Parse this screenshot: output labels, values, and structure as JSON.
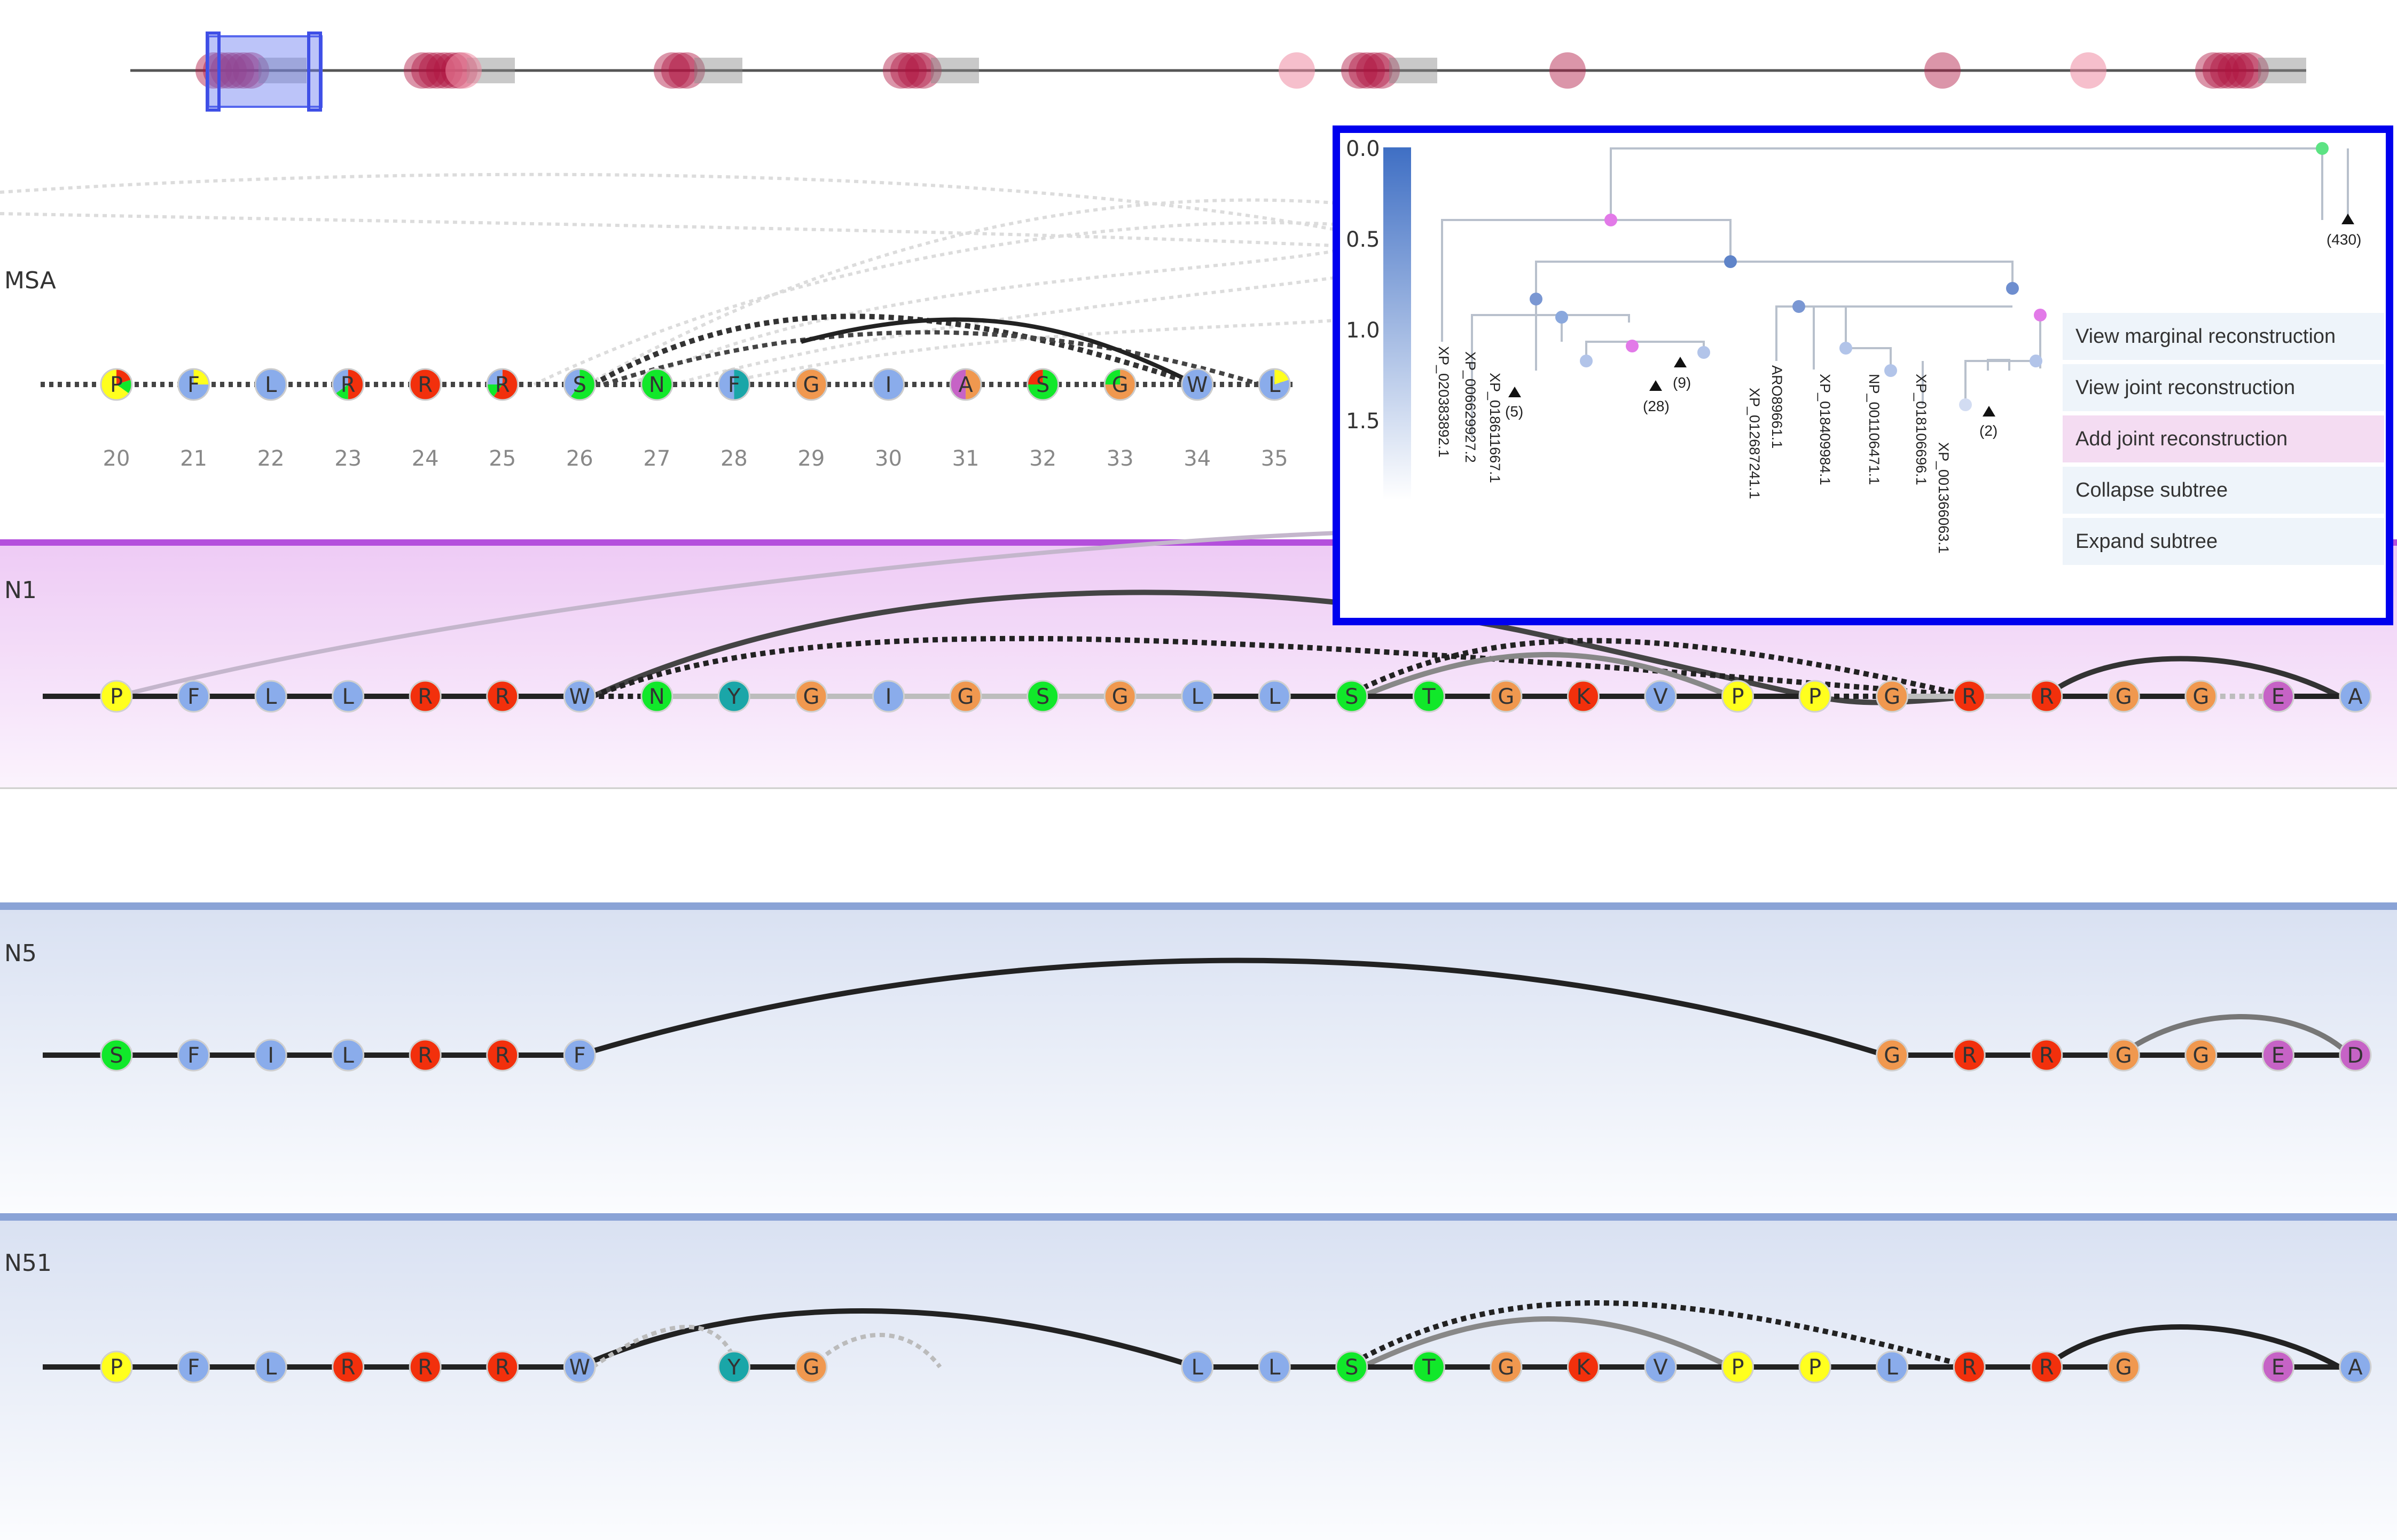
{
  "colors": {
    "yellow": "#ffff1e",
    "blue": "#8aaceb",
    "red": "#f2300c",
    "green": "#11e82a",
    "teal": "#1aa6a8",
    "orange": "#f0984f",
    "purple": "#c663c6",
    "n1_band": "#f1ccf5",
    "n1_border": "#b44fdc",
    "n5_band": "#dbe3f3",
    "n5_border": "#8aa3d6",
    "tree_border": "#0000ee",
    "brush": "#6a7cf2"
  },
  "overview": {
    "region_icon": "brush-window",
    "marks": [
      {
        "pos": 0.0,
        "hue": "dark",
        "w": 6
      },
      {
        "pos": 0.1,
        "hue": "dark",
        "w": 6
      },
      {
        "pos": 0.12,
        "hue": "light",
        "w": 1
      },
      {
        "pos": 0.22,
        "hue": "dark",
        "w": 3
      },
      {
        "pos": 0.33,
        "hue": "dark",
        "w": 4
      },
      {
        "pos": 0.52,
        "hue": "light",
        "w": 1
      },
      {
        "pos": 0.55,
        "hue": "dark",
        "w": 4
      },
      {
        "pos": 0.65,
        "hue": "dark",
        "w": 1
      },
      {
        "pos": 0.83,
        "hue": "dark",
        "w": 1
      },
      {
        "pos": 0.9,
        "hue": "light",
        "w": 1
      },
      {
        "pos": 0.96,
        "hue": "dark",
        "w": 6
      }
    ]
  },
  "msa": {
    "label": "MSA",
    "residues": [
      "P",
      "F",
      "L",
      "R",
      "R",
      "R",
      "S",
      "N",
      "F",
      "G",
      "I",
      "A",
      "S",
      "G",
      "W",
      "L"
    ],
    "positions": [
      "20",
      "21",
      "22",
      "23",
      "24",
      "25",
      "26",
      "27",
      "28",
      "29",
      "30",
      "31",
      "32",
      "33",
      "34",
      "35"
    ],
    "mixes": [
      [
        [
          "red",
          0.2
        ],
        [
          "green",
          0.15
        ],
        [
          "yellow",
          0.65
        ]
      ],
      [
        [
          "yellow",
          0.25
        ],
        [
          "blue",
          0.75
        ]
      ],
      [
        [
          "blue",
          1
        ]
      ],
      [
        [
          "red",
          0.5
        ],
        [
          "green",
          0.15
        ],
        [
          "blue",
          0.35
        ]
      ],
      [
        [
          "red",
          1
        ]
      ],
      [
        [
          "red",
          0.6
        ],
        [
          "green",
          0.15
        ],
        [
          "blue",
          0.25
        ]
      ],
      [
        [
          "green",
          0.6
        ],
        [
          "blue",
          0.4
        ]
      ],
      [
        [
          "green",
          1
        ]
      ],
      [
        [
          "teal",
          0.5
        ],
        [
          "blue",
          0.5
        ]
      ],
      [
        [
          "orange",
          1
        ]
      ],
      [
        [
          "blue",
          1
        ]
      ],
      [
        [
          "orange",
          0.5
        ],
        [
          "purple",
          0.5
        ]
      ],
      [
        [
          "green",
          0.75
        ],
        [
          "red",
          0.25
        ]
      ],
      [
        [
          "orange",
          0.75
        ],
        [
          "green",
          0.25
        ]
      ],
      [
        [
          "blue",
          1
        ]
      ],
      [
        [
          "yellow",
          0.2
        ],
        [
          "blue",
          0.8
        ]
      ]
    ]
  },
  "n1": {
    "label": "N1",
    "residues": [
      "P",
      "F",
      "L",
      "L",
      "R",
      "R",
      "W",
      "N",
      "Y",
      "G",
      "I",
      "G",
      "S",
      "G",
      "L",
      "L",
      "S",
      "T",
      "G",
      "K",
      "V",
      "P",
      "P",
      "G",
      "R",
      "R",
      "G",
      "G",
      "E",
      "A"
    ]
  },
  "n5": {
    "label": "N5",
    "residues": [
      "S",
      "F",
      "I",
      "L",
      "R",
      "R",
      "F",
      "",
      "",
      "",
      "",
      "",
      "",
      "",
      "",
      "",
      "",
      "",
      "",
      "",
      "",
      "",
      "",
      "G",
      "R",
      "R",
      "G",
      "G",
      "E",
      "D"
    ]
  },
  "n51": {
    "label": "N51",
    "residues": [
      "P",
      "F",
      "L",
      "R",
      "R",
      "R",
      "W",
      "",
      "Y",
      "G",
      "",
      "",
      "",
      "",
      "L",
      "L",
      "S",
      "T",
      "G",
      "K",
      "V",
      "P",
      "P",
      "L",
      "R",
      "R",
      "G",
      "",
      "E",
      "A"
    ]
  },
  "tree": {
    "scale": [
      "0.0",
      "0.5",
      "1.0",
      "1.5"
    ],
    "leaves": [
      "XP_020383892.1",
      "XP_006629927.2",
      "XP_018611667.1",
      "XP_012687241.1",
      "ARO89661.1",
      "XP_018409984.1",
      "NP_001106471.1",
      "XP_018106696.1",
      "XP_001366063.1"
    ],
    "collapsed": [
      "(5)",
      "(28)",
      "(9)",
      "(2)",
      "(430)"
    ]
  },
  "menu": [
    {
      "label": "View marginal reconstruction",
      "hl": false
    },
    {
      "label": "View joint reconstruction",
      "hl": false
    },
    {
      "label": "Add joint reconstruction",
      "hl": true
    },
    {
      "label": "Collapse subtree",
      "hl": false
    },
    {
      "label": "Expand subtree",
      "hl": false
    }
  ]
}
